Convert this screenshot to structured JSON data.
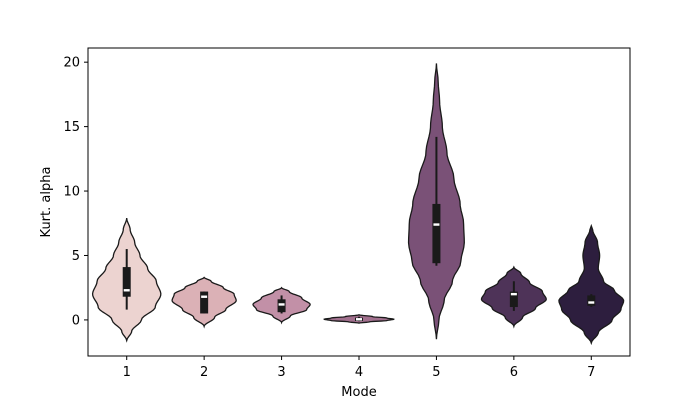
{
  "chart_data": {
    "type": "violin",
    "xlabel": "Mode",
    "ylabel": "Kurt. alpha",
    "ylim": [
      -2.8,
      21.1
    ],
    "yticks": [
      0,
      5,
      10,
      15,
      20
    ],
    "grid": false,
    "categories": [
      "1",
      "2",
      "3",
      "4",
      "5",
      "6",
      "7"
    ],
    "colors": [
      "#ecd3d0",
      "#dbb1b6",
      "#c290a7",
      "#a2708e",
      "#7a5177",
      "#4e3358",
      "#2d1e3e"
    ],
    "violins": [
      {
        "category": "1",
        "bottom": -1.6,
        "top": 7.9,
        "q1": 1.8,
        "median": 2.3,
        "q3": 4.1,
        "whisker_low": 0.8,
        "whisker_high": 5.5,
        "profile": [
          [
            -1.6,
            0.0
          ],
          [
            -0.9,
            0.14
          ],
          [
            0.0,
            0.42
          ],
          [
            1.0,
            0.82
          ],
          [
            2.0,
            0.98
          ],
          [
            3.0,
            0.85
          ],
          [
            4.0,
            0.6
          ],
          [
            5.0,
            0.38
          ],
          [
            6.0,
            0.23
          ],
          [
            7.0,
            0.1
          ],
          [
            7.9,
            0.0
          ]
        ]
      },
      {
        "category": "2",
        "bottom": -0.5,
        "top": 3.3,
        "q1": 0.5,
        "median": 1.8,
        "q3": 2.2,
        "whisker_low": 0.5,
        "whisker_high": 2.2,
        "profile": [
          [
            -0.5,
            0.0
          ],
          [
            0.2,
            0.3
          ],
          [
            0.8,
            0.62
          ],
          [
            1.5,
            0.92
          ],
          [
            2.0,
            0.86
          ],
          [
            2.5,
            0.55
          ],
          [
            3.0,
            0.2
          ],
          [
            3.3,
            0.0
          ]
        ]
      },
      {
        "category": "3",
        "bottom": -0.2,
        "top": 2.5,
        "q1": 0.6,
        "median": 1.2,
        "q3": 1.6,
        "whisker_low": 0.5,
        "whisker_high": 1.9,
        "profile": [
          [
            -0.2,
            0.0
          ],
          [
            0.3,
            0.25
          ],
          [
            0.8,
            0.72
          ],
          [
            1.2,
            0.82
          ],
          [
            1.7,
            0.58
          ],
          [
            2.2,
            0.22
          ],
          [
            2.5,
            0.0
          ]
        ]
      },
      {
        "category": "4",
        "bottom": -0.25,
        "top": 0.4,
        "q1": -0.08,
        "median": 0.05,
        "q3": 0.18,
        "whisker_low": -0.1,
        "whisker_high": 0.25,
        "profile": [
          [
            -0.25,
            0.0
          ],
          [
            -0.15,
            0.3
          ],
          [
            -0.05,
            0.8
          ],
          [
            0.05,
            1.0
          ],
          [
            0.15,
            0.8
          ],
          [
            0.25,
            0.4
          ],
          [
            0.4,
            0.0
          ]
        ]
      },
      {
        "category": "5",
        "bottom": -1.5,
        "top": 19.9,
        "q1": 4.4,
        "median": 7.4,
        "q3": 9.0,
        "whisker_low": 4.2,
        "whisker_high": 14.2,
        "profile": [
          [
            -1.5,
            0.0
          ],
          [
            0.0,
            0.07
          ],
          [
            1.5,
            0.22
          ],
          [
            3.0,
            0.46
          ],
          [
            4.5,
            0.7
          ],
          [
            6.0,
            0.8
          ],
          [
            7.5,
            0.78
          ],
          [
            9.0,
            0.68
          ],
          [
            11.0,
            0.5
          ],
          [
            13.0,
            0.3
          ],
          [
            15.0,
            0.17
          ],
          [
            17.0,
            0.09
          ],
          [
            18.5,
            0.05
          ],
          [
            19.9,
            0.0
          ]
        ]
      },
      {
        "category": "6",
        "bottom": -0.5,
        "top": 4.1,
        "q1": 1.0,
        "median": 2.0,
        "q3": 2.2,
        "whisker_low": 0.7,
        "whisker_high": 3.0,
        "profile": [
          [
            -0.5,
            0.0
          ],
          [
            0.2,
            0.25
          ],
          [
            0.9,
            0.62
          ],
          [
            1.6,
            0.93
          ],
          [
            2.2,
            0.82
          ],
          [
            2.9,
            0.45
          ],
          [
            3.6,
            0.2
          ],
          [
            4.1,
            0.0
          ]
        ]
      },
      {
        "category": "7",
        "bottom": -1.8,
        "top": 7.3,
        "q1": 1.1,
        "median": 1.35,
        "q3": 1.9,
        "whisker_low": 1.0,
        "whisker_high": 2.0,
        "profile": [
          [
            -1.8,
            0.0
          ],
          [
            -1.0,
            0.2
          ],
          [
            0.0,
            0.6
          ],
          [
            0.8,
            0.85
          ],
          [
            1.5,
            0.93
          ],
          [
            2.3,
            0.66
          ],
          [
            3.0,
            0.35
          ],
          [
            4.0,
            0.2
          ],
          [
            5.0,
            0.24
          ],
          [
            6.0,
            0.18
          ],
          [
            7.0,
            0.04
          ],
          [
            7.3,
            0.0
          ]
        ]
      }
    ]
  }
}
